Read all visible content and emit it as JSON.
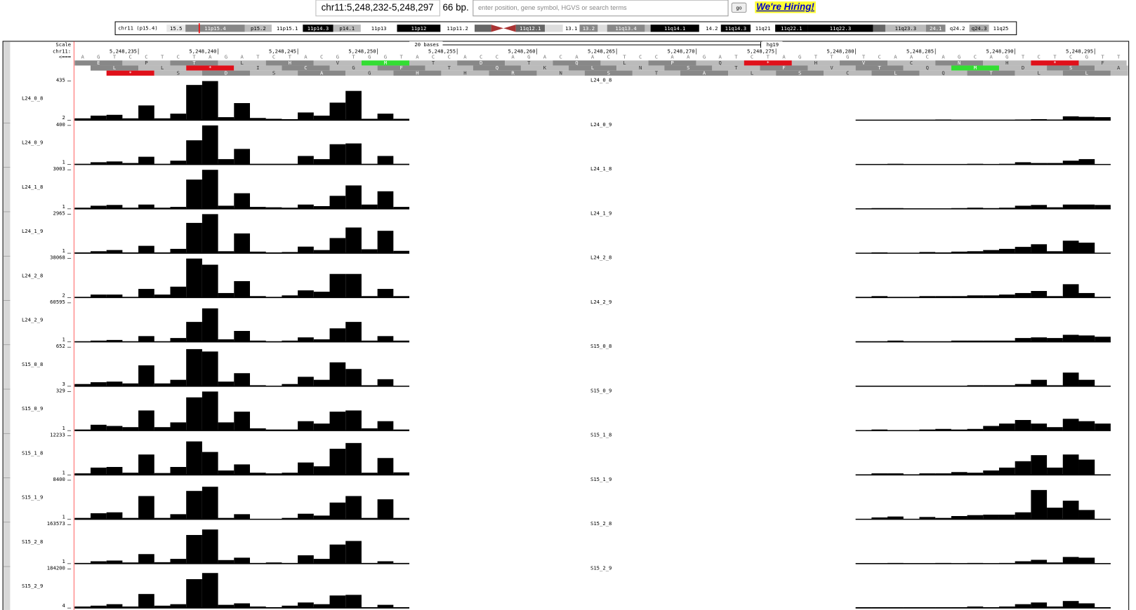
{
  "header": {
    "position": "chr11:5,248,232-5,248,297",
    "size": "66 bp.",
    "search_placeholder": "enter position, gene symbol, HGVS or search terms",
    "go": "go",
    "hiring": "We're Hiring!"
  },
  "ideogram": {
    "label": "chr11 (p15.4)",
    "bands": [
      "15.5",
      "11p15.4",
      "p15.2",
      "11p15.1",
      "11p14.3",
      "p14.1",
      "11p13",
      "11p12",
      "11p11.2",
      "11q12.1",
      "13.1",
      "13.2",
      "11q13.4",
      "11q14.1",
      "14.2",
      "11q14.3",
      "11q21",
      "11q22.1",
      "11q22.3",
      "11q23.3",
      "24.1",
      "q24.2",
      "q24.3",
      "11q25"
    ]
  },
  "ruler": {
    "scale": "Scale",
    "chrom": "chr11:",
    "direction": "<===",
    "scale_bar": "20 bases",
    "assembly": "hg19",
    "coords": [
      "5,248,235",
      "5,248,240",
      "5,248,245",
      "5,248,250",
      "5,248,255",
      "5,248,260",
      "5,248,265",
      "5,248,270",
      "5,248,275",
      "5,248,280",
      "5,248,285",
      "5,248,290",
      "5,248,295"
    ]
  },
  "sequence": "AGTCCTCTAGATCTACGTGGTACCACCAGACAACTCCAAGATCTAGTTGTCAACAGCAGTCTCGTT",
  "frames": [
    "EPTLHVMTDTQLPQ*HVCNH*F",
    "LL*ICGFTQKLNSTFVTQMDSA",
    "*SDSAGHHRNSTALSCLQTLLF"
  ],
  "tracks": [
    {
      "name": "L24_0_8",
      "max": 435,
      "min": 2,
      "left": [
        22,
        52,
        61,
        22,
        165,
        22,
        74,
        392,
        435,
        35,
        191,
        26,
        17,
        13,
        87,
        52,
        196,
        326,
        17,
        74,
        17
      ],
      "right": [
        4,
        4,
        4,
        4,
        4,
        9,
        4,
        4,
        4,
        4,
        9,
        13,
        9,
        44,
        39,
        35
      ]
    },
    {
      "name": "L24_0_9",
      "max": 400,
      "min": 1,
      "left": [
        8,
        24,
        32,
        16,
        80,
        8,
        40,
        248,
        400,
        56,
        160,
        8,
        8,
        8,
        88,
        56,
        208,
        216,
        8,
        88,
        8
      ],
      "right": [
        4,
        4,
        8,
        4,
        4,
        4,
        4,
        8,
        4,
        8,
        24,
        16,
        16,
        40,
        56,
        4
      ]
    },
    {
      "name": "L24_1_8",
      "max": 3003,
      "min": 1,
      "left": [
        90,
        240,
        300,
        90,
        330,
        90,
        150,
        2250,
        3000,
        240,
        1200,
        150,
        120,
        90,
        330,
        210,
        1000,
        1800,
        330,
        1350,
        150
      ],
      "right": [
        30,
        60,
        60,
        30,
        30,
        30,
        60,
        90,
        60,
        90,
        240,
        300,
        120,
        330,
        330,
        300
      ]
    },
    {
      "name": "L24_1_9",
      "max": 2965,
      "min": 1,
      "left": [
        60,
        150,
        240,
        60,
        560,
        60,
        330,
        2300,
        2965,
        150,
        1500,
        120,
        60,
        90,
        500,
        240,
        1150,
        1950,
        300,
        1700,
        180
      ],
      "right": [
        30,
        60,
        30,
        30,
        90,
        60,
        120,
        150,
        240,
        330,
        480,
        680,
        150,
        950,
        800,
        30
      ]
    },
    {
      "name": "L24_2_8",
      "max": 38068,
      "min": 2,
      "left": [
        700,
        2900,
        2900,
        700,
        8400,
        2900,
        10600,
        38000,
        32000,
        4400,
        16000,
        1400,
        700,
        2100,
        7000,
        5700,
        23000,
        23000,
        1400,
        8400,
        1400
      ],
      "right": [
        700,
        1400,
        700,
        700,
        1400,
        1400,
        1400,
        2100,
        2100,
        2900,
        4400,
        6400,
        1400,
        13000,
        4400,
        700
      ]
    },
    {
      "name": "L24_2_9",
      "max": 60595,
      "min": 1,
      "left": [
        1000,
        2000,
        3000,
        1000,
        9000,
        1000,
        6000,
        31000,
        52000,
        4000,
        17000,
        2000,
        1000,
        2000,
        7000,
        4000,
        21000,
        31000,
        2000,
        9000,
        2000
      ],
      "right": [
        1000,
        1000,
        2000,
        1000,
        1000,
        1000,
        2000,
        2000,
        2000,
        2000,
        6000,
        7000,
        6000,
        11000,
        10000,
        8000
      ]
    },
    {
      "name": "S15_0_8",
      "max": 652,
      "min": 3,
      "left": [
        40,
        70,
        80,
        50,
        350,
        50,
        110,
        620,
        580,
        80,
        220,
        20,
        10,
        40,
        160,
        110,
        400,
        290,
        20,
        120,
        10
      ],
      "right": [
        10,
        10,
        10,
        10,
        10,
        10,
        10,
        20,
        20,
        20,
        40,
        110,
        20,
        230,
        110,
        10
      ]
    },
    {
      "name": "S15_0_9",
      "max": 329,
      "min": 1,
      "left": [
        10,
        50,
        40,
        30,
        170,
        30,
        70,
        280,
        329,
        70,
        160,
        20,
        10,
        10,
        80,
        60,
        160,
        170,
        20,
        80,
        10
      ],
      "right": [
        5,
        10,
        5,
        5,
        10,
        15,
        10,
        15,
        40,
        60,
        90,
        60,
        30,
        100,
        80,
        60
      ]
    },
    {
      "name": "S15_1_8",
      "max": 12233,
      "min": 1,
      "left": [
        500,
        2300,
        2500,
        700,
        6400,
        600,
        2500,
        10500,
        7200,
        1400,
        3300,
        700,
        500,
        700,
        3900,
        2700,
        8200,
        10000,
        700,
        5300,
        800
      ],
      "right": [
        200,
        500,
        500,
        200,
        500,
        500,
        900,
        700,
        1400,
        2300,
        4300,
        6200,
        2300,
        6400,
        4800,
        200
      ]
    },
    {
      "name": "S15_1_9",
      "max": 8400,
      "min": 1,
      "left": [
        300,
        1300,
        1500,
        300,
        5000,
        300,
        1100,
        6100,
        7000,
        300,
        1100,
        100,
        100,
        300,
        1200,
        800,
        3600,
        5000,
        300,
        4300,
        300
      ],
      "right": [
        100,
        400,
        600,
        100,
        500,
        300,
        700,
        900,
        1000,
        1000,
        1500,
        6300,
        2500,
        4000,
        2000,
        100
      ]
    },
    {
      "name": "S15_2_8",
      "max": 163573,
      "min": 1,
      "left": [
        3000,
        10000,
        13000,
        5000,
        40000,
        6000,
        20000,
        120000,
        143000,
        15000,
        25000,
        3000,
        5000,
        3000,
        35000,
        20000,
        80000,
        95000,
        3000,
        10000,
        3000
      ],
      "right": [
        2000,
        2000,
        3000,
        2000,
        2000,
        3000,
        2000,
        3000,
        2000,
        3000,
        10000,
        16000,
        5000,
        28000,
        25000,
        2000
      ]
    },
    {
      "name": "S15_2_9",
      "max": 184200,
      "min": 4,
      "left": [
        7000,
        11000,
        18000,
        7000,
        66000,
        11000,
        18000,
        136000,
        165000,
        15000,
        22000,
        7000,
        4000,
        11000,
        26000,
        18000,
        59000,
        62000,
        4000,
        15000,
        4000
      ],
      "right": [
        4000,
        4000,
        4000,
        4000,
        4000,
        4000,
        4000,
        7000,
        4000,
        7000,
        18000,
        26000,
        7000,
        33000,
        22000,
        4000
      ]
    }
  ]
}
